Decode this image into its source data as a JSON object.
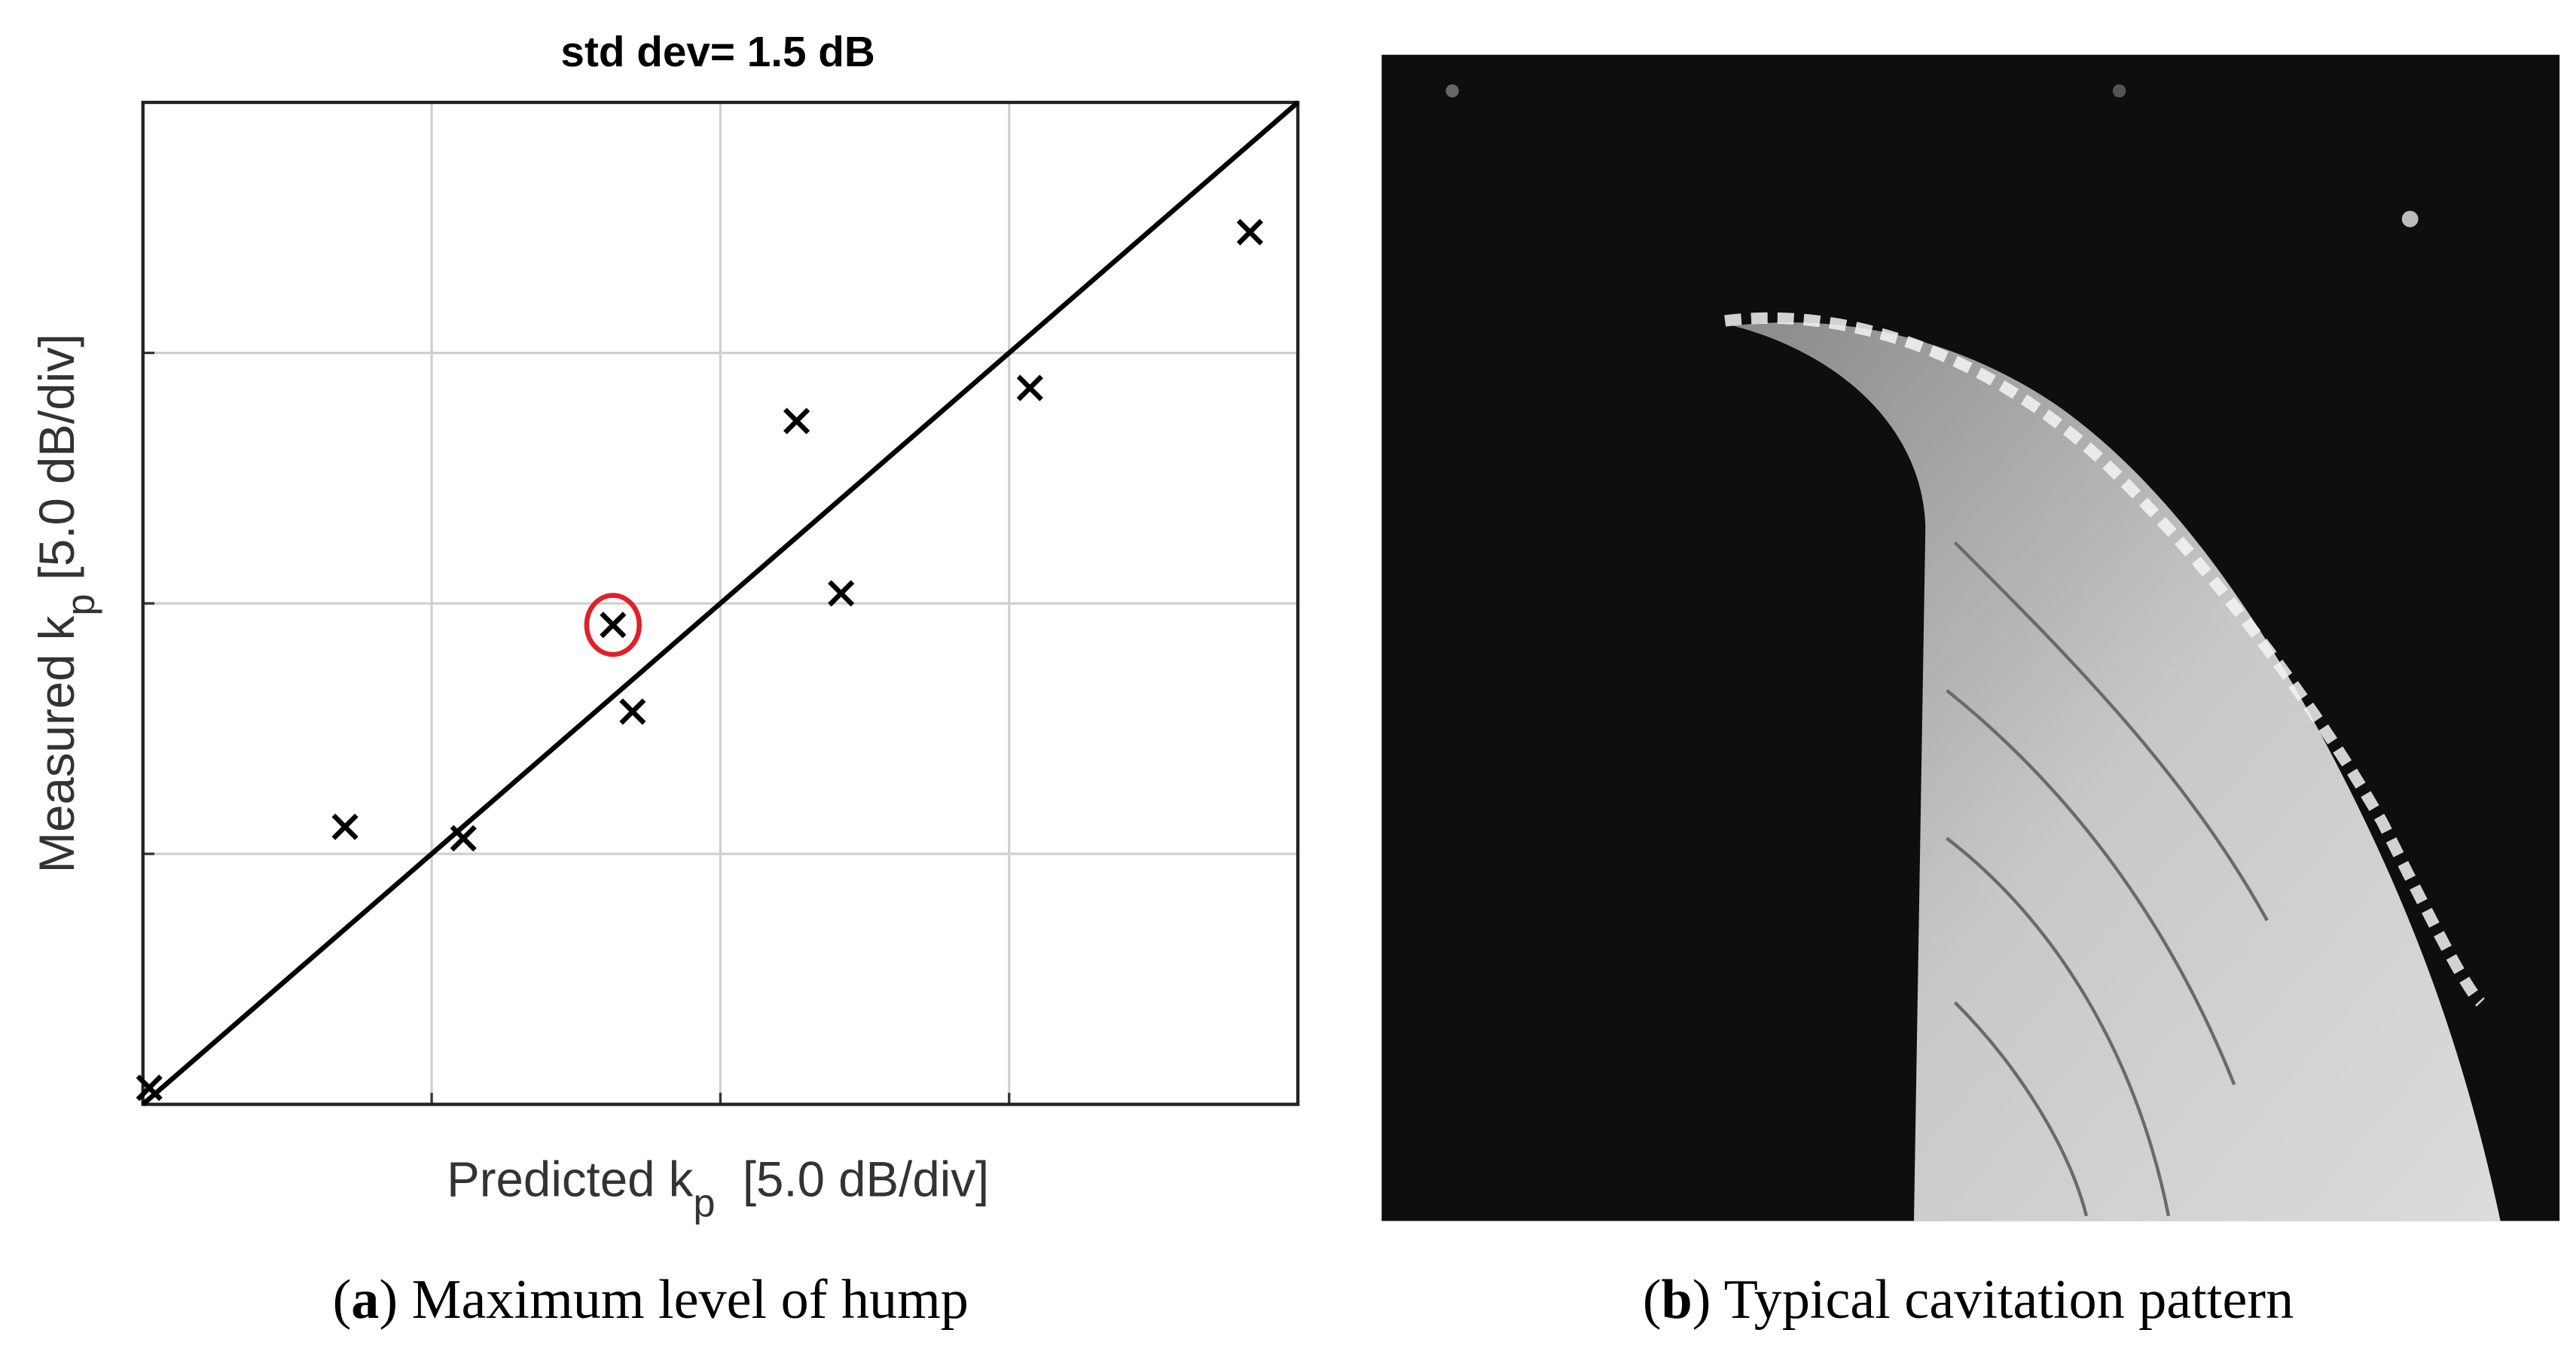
{
  "chart_data": {
    "type": "scatter",
    "title": "std dev= 1.5 dB",
    "xlabel": {
      "main": "Predicted k",
      "sub": "p",
      "rest": "  [5.0 dB/div]"
    },
    "ylabel": {
      "main": "Measured k",
      "sub": "p",
      "rest": " [5.0 dB/div]"
    },
    "x": [
      0.11,
      3.5,
      5.55,
      8.14,
      8.48,
      11.32,
      12.09,
      15.36,
      19.17
    ],
    "values": [
      0.33,
      5.54,
      5.31,
      9.57,
      7.84,
      13.64,
      10.2,
      14.3,
      17.41
    ],
    "color": "#000000",
    "highlight_index": 3,
    "highlight_color": "#e0202a",
    "reference_line": {
      "x": [
        0,
        20
      ],
      "y": [
        0,
        20
      ]
    },
    "xlim": [
      0,
      20
    ],
    "ylim": [
      0,
      20
    ],
    "xticks": [
      5,
      10,
      15
    ],
    "yticks": [
      5,
      10,
      15
    ],
    "grid": true
  },
  "captions": [
    {
      "open": "(",
      "label": "a",
      "rest": ") Maximum level of hump"
    },
    {
      "open": "(",
      "label": "b",
      "rest": ") Typical cavitation pattern"
    }
  ]
}
